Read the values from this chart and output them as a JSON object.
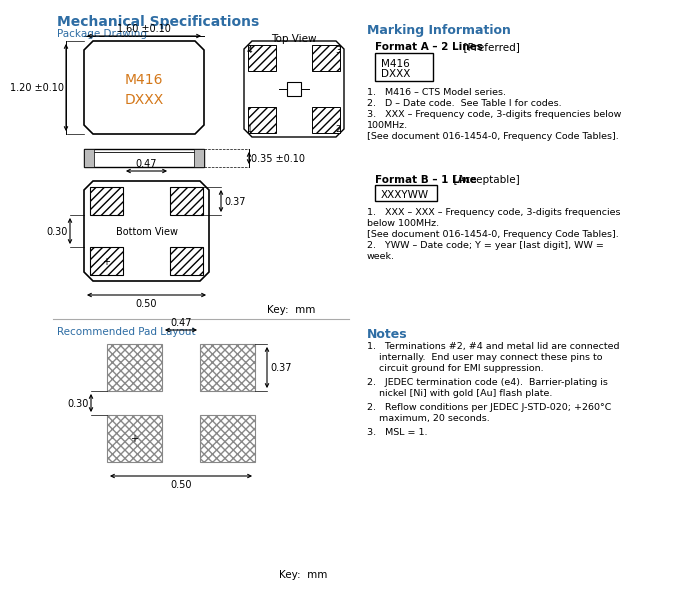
{
  "title": "Mechanical Specifications",
  "bg_color": "#ffffff",
  "blue_color": "#2E6DA4",
  "orange_color": "#D4781A",
  "black": "#000000",
  "light_gray": "#cccccc",
  "dark_gray": "#555555",
  "section_package": "Package Drawing",
  "section_marking": "Marking Information",
  "section_pad": "Recommended Pad Layout",
  "section_notes": "Notes",
  "dim_width": "1.60 ±0.10",
  "dim_height": "1.20 ±0.10",
  "dim_thickness": "0.35 ±0.10",
  "dim_pad_w": "0.47",
  "dim_pad_h": "0.37",
  "dim_pad_spacing": "0.30",
  "dim_bottom_w": "0.50",
  "key_label": "Key:  mm",
  "format_a_title_bold": "Format A – 2 Lines",
  "format_a_title_normal": "  [Preferred]",
  "format_a_line1": "M416",
  "format_a_line2": "DXXX",
  "format_b_title_bold": "Format B – 1 Line",
  "format_b_title_normal": "  [Acceptable]",
  "format_b_box": "XXXYWW",
  "notes_title": "Notes",
  "fa_note1": "1.   M416 – CTS Model series.",
  "fa_note2": "2.   D – Date code.  See Table I for codes.",
  "fa_note3a": "3.   XXX – Frequency code, 3-digits frequencies below",
  "fa_note3b": "100MHz.",
  "fa_note3c": "[See document 016-1454-0, Frequency Code Tables].",
  "fb_note1a": "1.   XXX – XXX – Frequency code, 3-digits frequencies",
  "fb_note1b": "below 100MHz.",
  "fb_note1c": "[See document 016-1454-0, Frequency Code Tables].",
  "fb_note2a": "2.   YWW – Date code; Y = year [last digit], WW =",
  "fb_note2b": "week.",
  "note1a": "1.   Terminations #2, #4 and metal lid are connected",
  "note1b": "internally.  End user may connect these pins to",
  "note1c": "circuit ground for EMI suppression.",
  "note2a": "2.   JEDEC termination code (e4).  Barrier-plating is",
  "note2b": "nickel [Ni] with gold [Au] flash plate.",
  "note3a": "2.   Reflow conditions per JEDEC J-STD-020; +260°C",
  "note3b": "maximum, 20 seconds.",
  "note4": "3.   MSL = 1."
}
